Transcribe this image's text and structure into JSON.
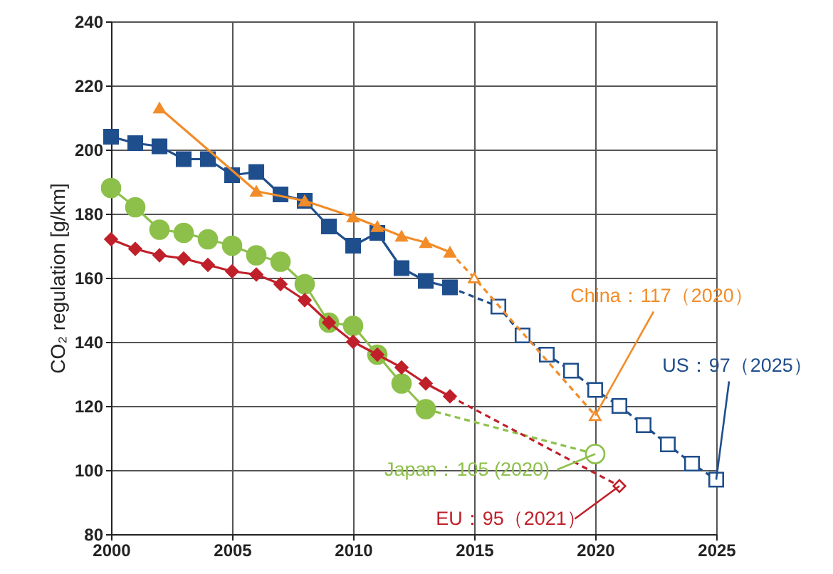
{
  "chart_data": {
    "type": "line",
    "ylabel": "CO₂ regulation [g/km]",
    "xlim": [
      2000,
      2025
    ],
    "xticks": [
      2000,
      2005,
      2010,
      2015,
      2020,
      2025
    ],
    "ylim": [
      80,
      240
    ],
    "yticks": [
      80,
      100,
      120,
      140,
      160,
      180,
      200,
      220,
      240
    ],
    "grid": true,
    "series": [
      {
        "color": "#1f4e8c",
        "marker": "square",
        "line_style": "solid",
        "x": [
          2000,
          2001,
          2002,
          2003,
          2004,
          2005,
          2006,
          2007,
          2008,
          2009,
          2010,
          2011,
          2012,
          2013,
          2014
        ],
        "values": [
          204,
          202,
          201,
          197,
          197,
          192,
          193,
          186,
          184,
          176,
          170,
          174,
          163,
          159,
          157
        ]
      },
      {
        "color": "#1f4e8c",
        "marker": "square",
        "line_style": "dashed",
        "x": [
          2014,
          2016,
          2017,
          2018,
          2019,
          2020,
          2021,
          2022,
          2023,
          2024,
          2025
        ],
        "values": [
          157,
          151,
          142,
          136,
          131,
          125,
          120,
          114,
          108,
          102,
          97
        ]
      },
      {
        "color": "#f28c28",
        "marker": "triangle",
        "line_style": "solid",
        "x": [
          2002,
          2006,
          2008,
          2010,
          2011,
          2012,
          2013,
          2014
        ],
        "values": [
          213,
          187,
          184,
          179,
          176,
          173,
          171,
          168
        ]
      },
      {
        "color": "#f28c28",
        "marker": "triangle",
        "line_style": "dashed",
        "x": [
          2014,
          2015,
          2020
        ],
        "values": [
          168,
          160,
          117
        ]
      },
      {
        "color": "#8dc04a",
        "marker": "circle",
        "line_style": "solid",
        "x": [
          2000,
          2001,
          2002,
          2003,
          2004,
          2005,
          2006,
          2007,
          2008,
          2009,
          2010,
          2011,
          2012,
          2013
        ],
        "values": [
          188,
          182,
          175,
          174,
          172,
          170,
          167,
          165,
          158,
          146,
          145,
          136,
          127,
          119
        ]
      },
      {
        "color": "#8dc04a",
        "marker": "circle",
        "line_style": "dashed",
        "x": [
          2013,
          2020
        ],
        "values": [
          119,
          105
        ]
      },
      {
        "color": "#c0202a",
        "marker": "diamond",
        "line_style": "solid",
        "x": [
          2000,
          2001,
          2002,
          2003,
          2004,
          2005,
          2006,
          2007,
          2008,
          2009,
          2010,
          2011,
          2012,
          2013,
          2014
        ],
        "values": [
          172,
          169,
          167,
          166,
          164,
          162,
          161,
          158,
          153,
          146,
          140,
          136,
          132,
          127,
          123
        ]
      },
      {
        "color": "#c0202a",
        "marker": "diamond",
        "line_style": "dashed",
        "x": [
          2014,
          2021
        ],
        "values": [
          123,
          95
        ]
      }
    ],
    "annotations": [
      {
        "text": "China：117（2020）",
        "x": 2020,
        "y": 117
      },
      {
        "text": "US：97（2025）",
        "x": 2025,
        "y": 97
      },
      {
        "text": "Japan：105 (2020)",
        "x": 2020,
        "y": 105
      },
      {
        "text": "EU：95（2021）",
        "x": 2021,
        "y": 95
      }
    ]
  }
}
